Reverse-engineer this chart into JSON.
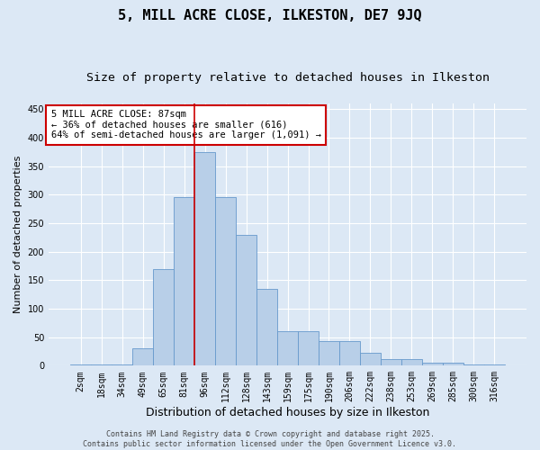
{
  "title": "5, MILL ACRE CLOSE, ILKESTON, DE7 9JQ",
  "subtitle": "Size of property relative to detached houses in Ilkeston",
  "xlabel": "Distribution of detached houses by size in Ilkeston",
  "ylabel": "Number of detached properties",
  "categories": [
    "2sqm",
    "18sqm",
    "34sqm",
    "49sqm",
    "65sqm",
    "81sqm",
    "96sqm",
    "112sqm",
    "128sqm",
    "143sqm",
    "159sqm",
    "175sqm",
    "190sqm",
    "206sqm",
    "222sqm",
    "238sqm",
    "253sqm",
    "269sqm",
    "285sqm",
    "300sqm",
    "316sqm"
  ],
  "values": [
    2,
    2,
    2,
    30,
    170,
    295,
    375,
    295,
    230,
    135,
    60,
    60,
    43,
    43,
    22,
    12,
    12,
    5,
    5,
    2,
    2
  ],
  "bar_color": "#b8cfe8",
  "bar_edge_color": "#6699cc",
  "background_color": "#dce8f5",
  "grid_color": "#ffffff",
  "annotation_text": "5 MILL ACRE CLOSE: 87sqm\n← 36% of detached houses are smaller (616)\n64% of semi-detached houses are larger (1,091) →",
  "annotation_box_color": "#ffffff",
  "annotation_box_edge_color": "#cc0000",
  "vline_color": "#cc0000",
  "ylim": [
    0,
    460
  ],
  "yticks": [
    0,
    50,
    100,
    150,
    200,
    250,
    300,
    350,
    400,
    450
  ],
  "footer_text": "Contains HM Land Registry data © Crown copyright and database right 2025.\nContains public sector information licensed under the Open Government Licence v3.0.",
  "title_fontsize": 11,
  "subtitle_fontsize": 9.5,
  "xlabel_fontsize": 9,
  "ylabel_fontsize": 8,
  "tick_fontsize": 7,
  "annotation_fontsize": 7.5,
  "footer_fontsize": 6
}
